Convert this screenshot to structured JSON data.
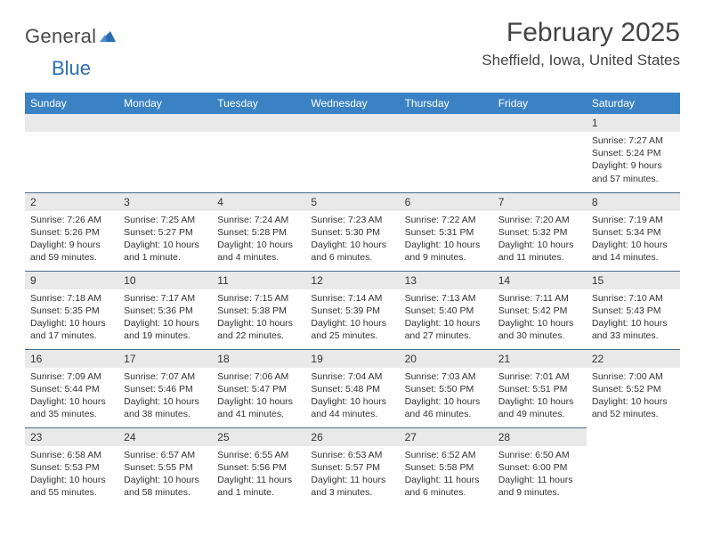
{
  "logo": {
    "text1": "General",
    "text2": "Blue"
  },
  "title": {
    "month": "February 2025",
    "location": "Sheffield, Iowa, United States"
  },
  "dayHeaders": [
    "Sunday",
    "Monday",
    "Tuesday",
    "Wednesday",
    "Thursday",
    "Friday",
    "Saturday"
  ],
  "colors": {
    "headerBg": "#3b82c4",
    "headerText": "#ffffff",
    "dayNumBg": "#e9e9e9",
    "rowBorder": "#4a6a8a",
    "bodyText": "#333333",
    "logoAccent": "#2a6db0"
  },
  "typography": {
    "titleFontSize": 30,
    "locationFontSize": 17,
    "headerFontSize": 12,
    "dayNumFontSize": 12,
    "infoFontSize": 10.5
  },
  "weeks": [
    [
      {
        "day": "",
        "lines": []
      },
      {
        "day": "",
        "lines": []
      },
      {
        "day": "",
        "lines": []
      },
      {
        "day": "",
        "lines": []
      },
      {
        "day": "",
        "lines": []
      },
      {
        "day": "",
        "lines": []
      },
      {
        "day": "1",
        "lines": [
          "Sunrise: 7:27 AM",
          "Sunset: 5:24 PM",
          "Daylight: 9 hours and 57 minutes."
        ]
      }
    ],
    [
      {
        "day": "2",
        "lines": [
          "Sunrise: 7:26 AM",
          "Sunset: 5:26 PM",
          "Daylight: 9 hours and 59 minutes."
        ]
      },
      {
        "day": "3",
        "lines": [
          "Sunrise: 7:25 AM",
          "Sunset: 5:27 PM",
          "Daylight: 10 hours and 1 minute."
        ]
      },
      {
        "day": "4",
        "lines": [
          "Sunrise: 7:24 AM",
          "Sunset: 5:28 PM",
          "Daylight: 10 hours and 4 minutes."
        ]
      },
      {
        "day": "5",
        "lines": [
          "Sunrise: 7:23 AM",
          "Sunset: 5:30 PM",
          "Daylight: 10 hours and 6 minutes."
        ]
      },
      {
        "day": "6",
        "lines": [
          "Sunrise: 7:22 AM",
          "Sunset: 5:31 PM",
          "Daylight: 10 hours and 9 minutes."
        ]
      },
      {
        "day": "7",
        "lines": [
          "Sunrise: 7:20 AM",
          "Sunset: 5:32 PM",
          "Daylight: 10 hours and 11 minutes."
        ]
      },
      {
        "day": "8",
        "lines": [
          "Sunrise: 7:19 AM",
          "Sunset: 5:34 PM",
          "Daylight: 10 hours and 14 minutes."
        ]
      }
    ],
    [
      {
        "day": "9",
        "lines": [
          "Sunrise: 7:18 AM",
          "Sunset: 5:35 PM",
          "Daylight: 10 hours and 17 minutes."
        ]
      },
      {
        "day": "10",
        "lines": [
          "Sunrise: 7:17 AM",
          "Sunset: 5:36 PM",
          "Daylight: 10 hours and 19 minutes."
        ]
      },
      {
        "day": "11",
        "lines": [
          "Sunrise: 7:15 AM",
          "Sunset: 5:38 PM",
          "Daylight: 10 hours and 22 minutes."
        ]
      },
      {
        "day": "12",
        "lines": [
          "Sunrise: 7:14 AM",
          "Sunset: 5:39 PM",
          "Daylight: 10 hours and 25 minutes."
        ]
      },
      {
        "day": "13",
        "lines": [
          "Sunrise: 7:13 AM",
          "Sunset: 5:40 PM",
          "Daylight: 10 hours and 27 minutes."
        ]
      },
      {
        "day": "14",
        "lines": [
          "Sunrise: 7:11 AM",
          "Sunset: 5:42 PM",
          "Daylight: 10 hours and 30 minutes."
        ]
      },
      {
        "day": "15",
        "lines": [
          "Sunrise: 7:10 AM",
          "Sunset: 5:43 PM",
          "Daylight: 10 hours and 33 minutes."
        ]
      }
    ],
    [
      {
        "day": "16",
        "lines": [
          "Sunrise: 7:09 AM",
          "Sunset: 5:44 PM",
          "Daylight: 10 hours and 35 minutes."
        ]
      },
      {
        "day": "17",
        "lines": [
          "Sunrise: 7:07 AM",
          "Sunset: 5:46 PM",
          "Daylight: 10 hours and 38 minutes."
        ]
      },
      {
        "day": "18",
        "lines": [
          "Sunrise: 7:06 AM",
          "Sunset: 5:47 PM",
          "Daylight: 10 hours and 41 minutes."
        ]
      },
      {
        "day": "19",
        "lines": [
          "Sunrise: 7:04 AM",
          "Sunset: 5:48 PM",
          "Daylight: 10 hours and 44 minutes."
        ]
      },
      {
        "day": "20",
        "lines": [
          "Sunrise: 7:03 AM",
          "Sunset: 5:50 PM",
          "Daylight: 10 hours and 46 minutes."
        ]
      },
      {
        "day": "21",
        "lines": [
          "Sunrise: 7:01 AM",
          "Sunset: 5:51 PM",
          "Daylight: 10 hours and 49 minutes."
        ]
      },
      {
        "day": "22",
        "lines": [
          "Sunrise: 7:00 AM",
          "Sunset: 5:52 PM",
          "Daylight: 10 hours and 52 minutes."
        ]
      }
    ],
    [
      {
        "day": "23",
        "lines": [
          "Sunrise: 6:58 AM",
          "Sunset: 5:53 PM",
          "Daylight: 10 hours and 55 minutes."
        ]
      },
      {
        "day": "24",
        "lines": [
          "Sunrise: 6:57 AM",
          "Sunset: 5:55 PM",
          "Daylight: 10 hours and 58 minutes."
        ]
      },
      {
        "day": "25",
        "lines": [
          "Sunrise: 6:55 AM",
          "Sunset: 5:56 PM",
          "Daylight: 11 hours and 1 minute."
        ]
      },
      {
        "day": "26",
        "lines": [
          "Sunrise: 6:53 AM",
          "Sunset: 5:57 PM",
          "Daylight: 11 hours and 3 minutes."
        ]
      },
      {
        "day": "27",
        "lines": [
          "Sunrise: 6:52 AM",
          "Sunset: 5:58 PM",
          "Daylight: 11 hours and 6 minutes."
        ]
      },
      {
        "day": "28",
        "lines": [
          "Sunrise: 6:50 AM",
          "Sunset: 6:00 PM",
          "Daylight: 11 hours and 9 minutes."
        ]
      },
      {
        "day": "",
        "lines": []
      }
    ]
  ]
}
